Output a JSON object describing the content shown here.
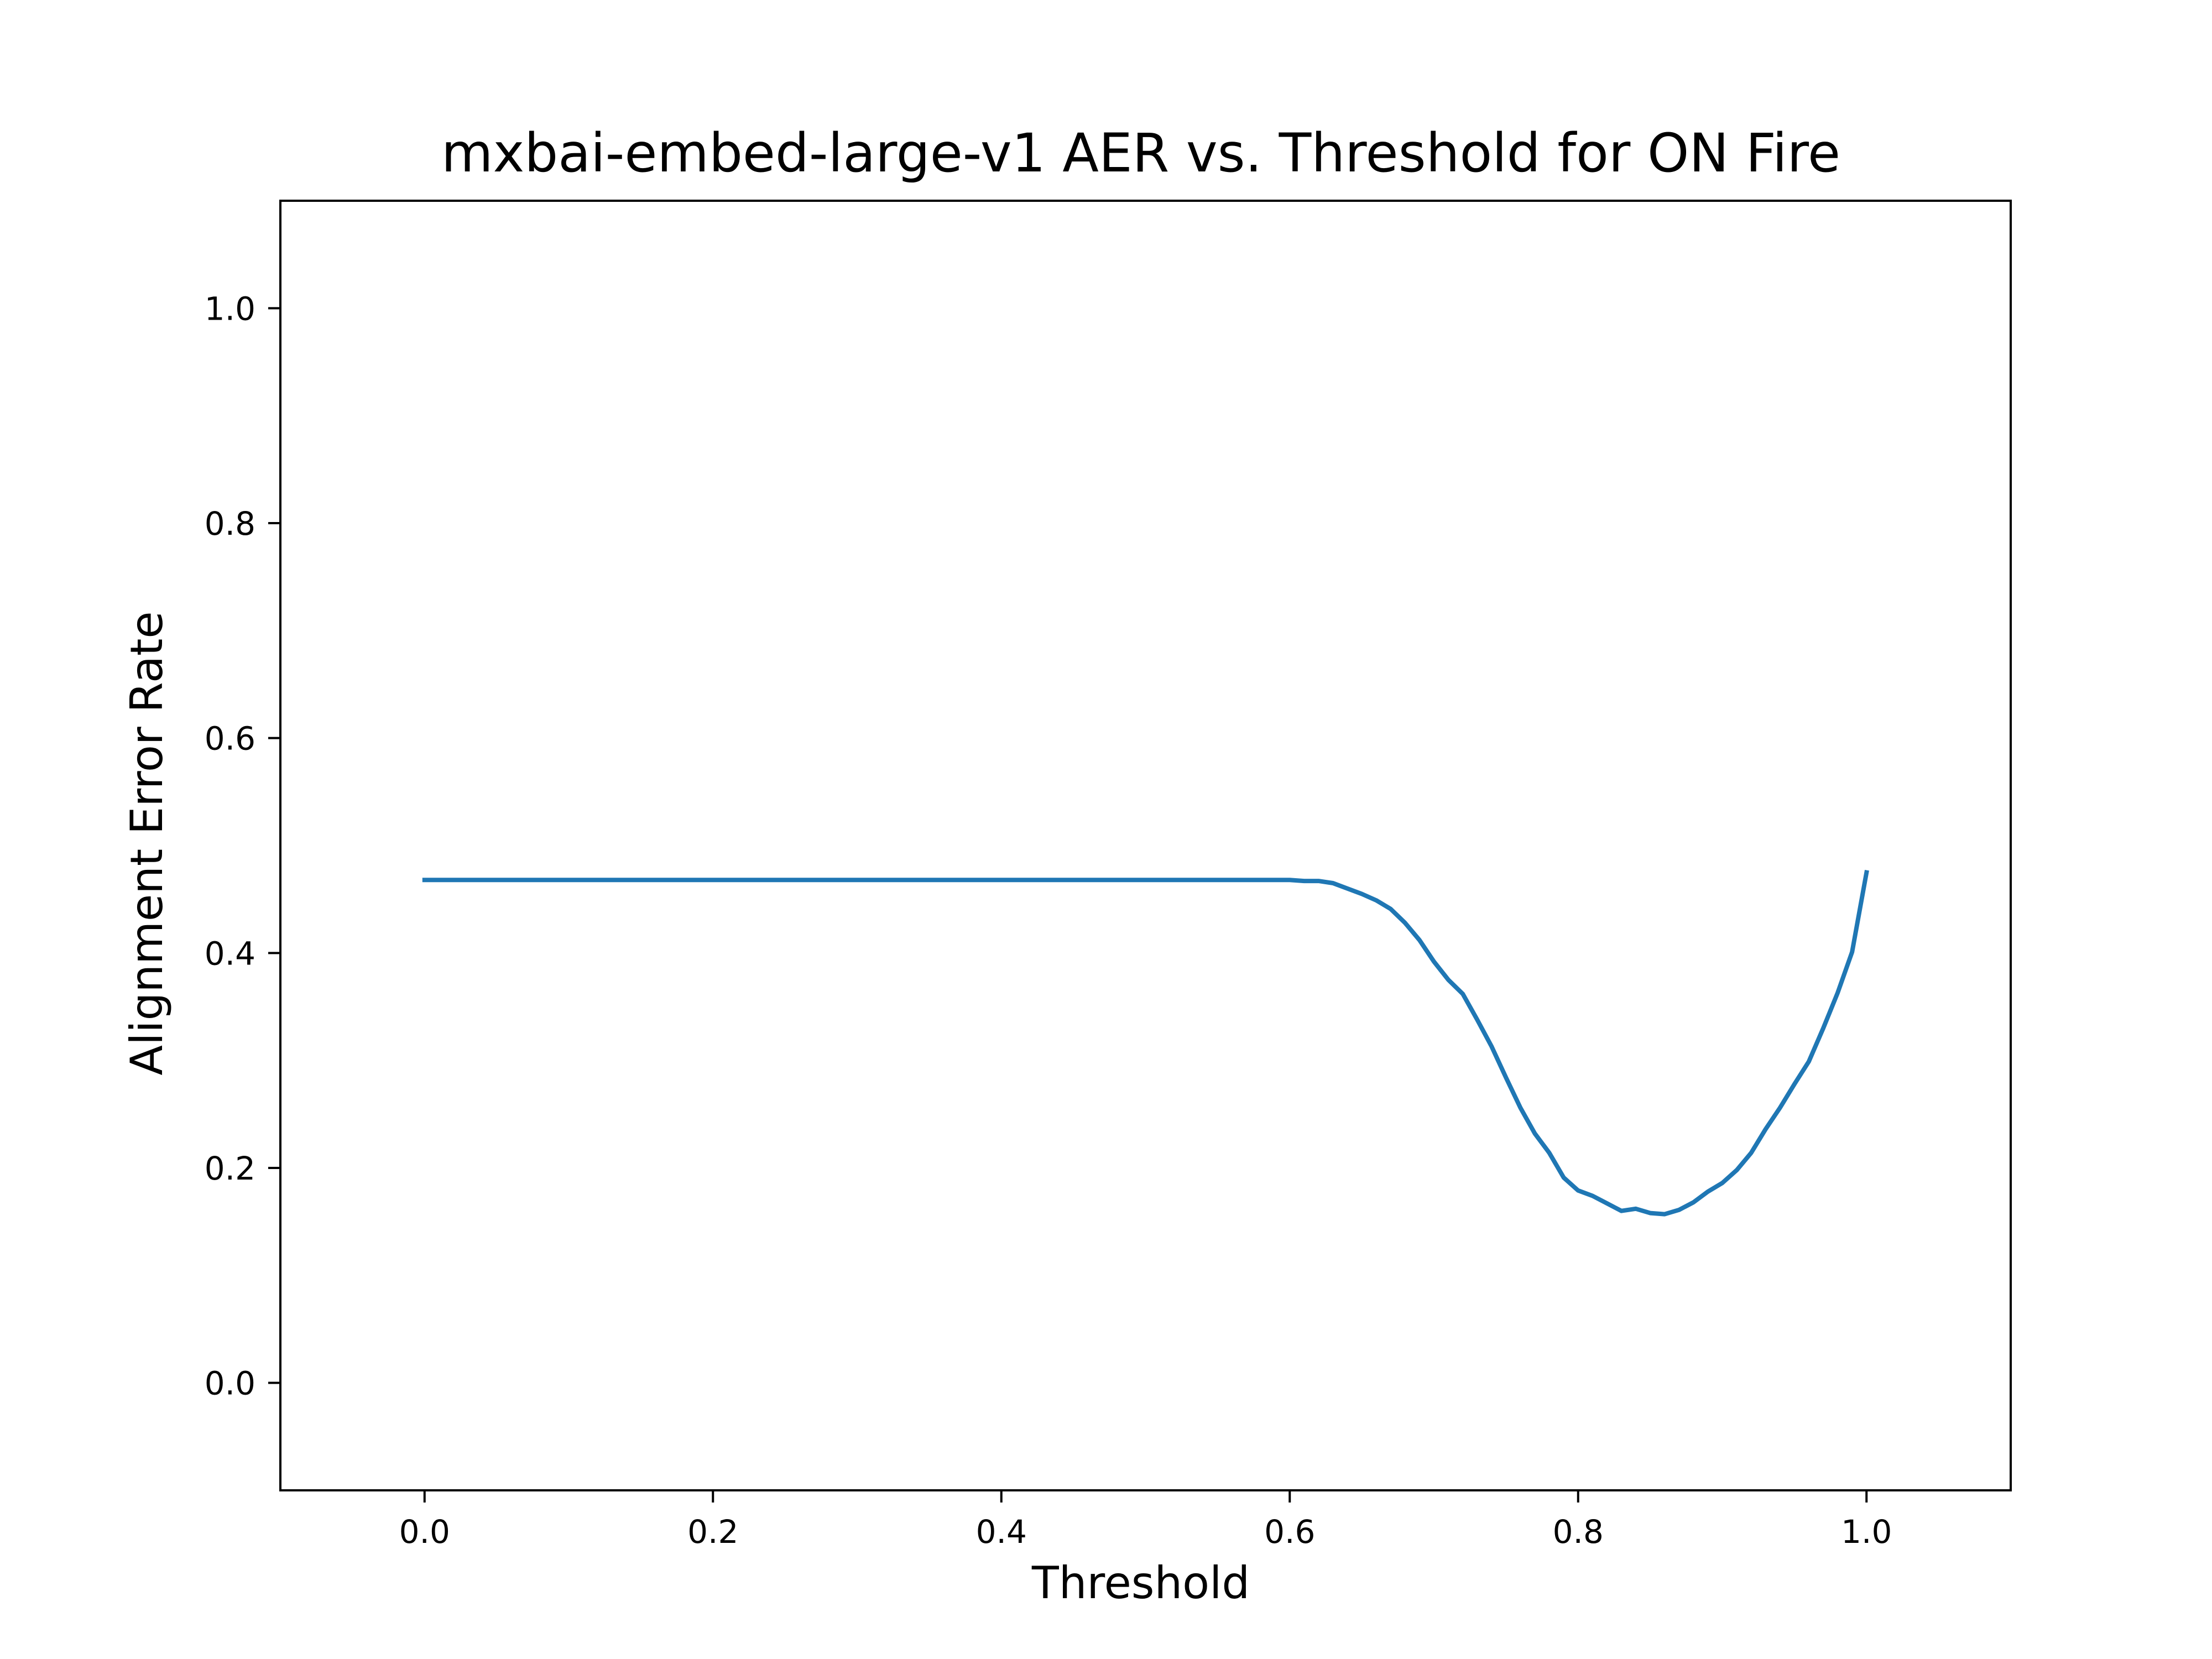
{
  "chart_data": {
    "type": "line",
    "title": "mxbai-embed-large-v1 AER vs. Threshold for ON Fire",
    "xlabel": "Threshold",
    "ylabel": "Alignment Error Rate",
    "xlim": [
      -0.1,
      1.1
    ],
    "ylim": [
      -0.1,
      1.1
    ],
    "xticks": [
      "0.0",
      "0.2",
      "0.4",
      "0.6",
      "0.8",
      "1.0"
    ],
    "yticks": [
      "0.0",
      "0.2",
      "0.4",
      "0.6",
      "0.8",
      "1.0"
    ],
    "grid": false,
    "legend": "none",
    "line_color": "#1f77b4",
    "series": [
      {
        "x": [
          0.0,
          0.1,
          0.2,
          0.3,
          0.4,
          0.5,
          0.6,
          0.61,
          0.62,
          0.63,
          0.64,
          0.65,
          0.66,
          0.67,
          0.68,
          0.69,
          0.7,
          0.71,
          0.72,
          0.73,
          0.74,
          0.75,
          0.76,
          0.77,
          0.78,
          0.79,
          0.8,
          0.81,
          0.82,
          0.83,
          0.84,
          0.85,
          0.86,
          0.87,
          0.88,
          0.89,
          0.9,
          0.91,
          0.92,
          0.93,
          0.94,
          0.95,
          0.96,
          0.97,
          0.98,
          0.99,
          1.0
        ],
        "values": [
          0.468,
          0.468,
          0.468,
          0.468,
          0.468,
          0.468,
          0.468,
          0.467,
          0.467,
          0.465,
          0.46,
          0.455,
          0.449,
          0.441,
          0.428,
          0.412,
          0.392,
          0.375,
          0.362,
          0.338,
          0.313,
          0.284,
          0.256,
          0.232,
          0.214,
          0.191,
          0.179,
          0.174,
          0.167,
          0.16,
          0.162,
          0.158,
          0.157,
          0.161,
          0.168,
          0.178,
          0.186,
          0.198,
          0.214,
          0.236,
          0.256,
          0.278,
          0.299,
          0.33,
          0.363,
          0.401,
          0.475
        ]
      }
    ]
  }
}
